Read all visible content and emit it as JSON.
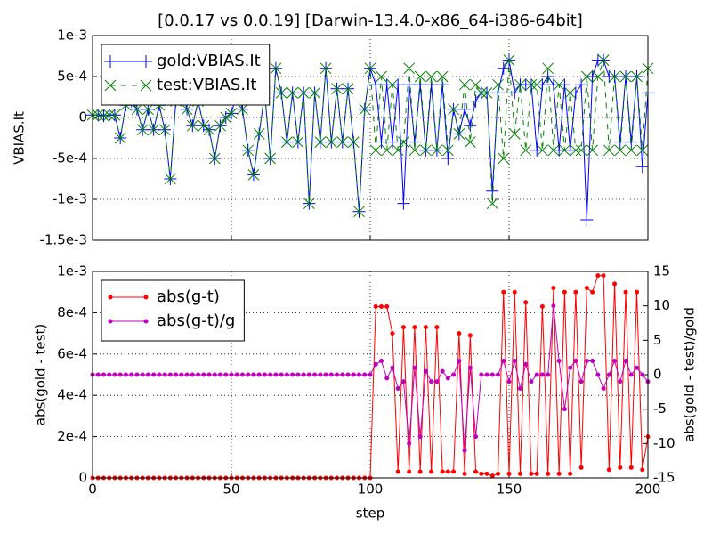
{
  "chart_data": [
    {
      "type": "line",
      "title": "[0.0.17 vs 0.0.19] [Darwin-13.4.0-x86_64-i386-64bit]",
      "ylabel": "VBIAS.It",
      "x": [
        0,
        2,
        4,
        6,
        8,
        10,
        12,
        14,
        16,
        18,
        20,
        22,
        24,
        26,
        28,
        30,
        32,
        34,
        36,
        38,
        40,
        42,
        44,
        46,
        48,
        50,
        52,
        54,
        56,
        58,
        60,
        62,
        64,
        66,
        68,
        70,
        72,
        74,
        76,
        78,
        80,
        82,
        84,
        86,
        88,
        90,
        92,
        94,
        96,
        98,
        100,
        102,
        104,
        106,
        108,
        110,
        112,
        114,
        116,
        118,
        120,
        122,
        124,
        126,
        128,
        130,
        132,
        134,
        136,
        138,
        140,
        142,
        144,
        146,
        148,
        150,
        152,
        154,
        156,
        158,
        160,
        162,
        164,
        166,
        168,
        170,
        172,
        174,
        176,
        178,
        180,
        182,
        184,
        186,
        188,
        190,
        192,
        194,
        196,
        198,
        200
      ],
      "series": [
        {
          "name": "gold:VBIAS.It",
          "color": "#0000ff",
          "marker": "+",
          "linestyle": "solid",
          "values": [
            3e-05,
            3e-05,
            2e-05,
            3e-05,
            3e-05,
            -0.00025,
            0.00015,
            0.0002,
            0.0001,
            -0.00015,
            0.0001,
            -0.00015,
            0.00015,
            -0.00015,
            -0.00075,
            0.0002,
            0.00035,
            0.0001,
            -0.0001,
            0.0002,
            -0.0001,
            -0.00015,
            -0.0005,
            -0.0001,
            0,
            5e-05,
            0.0003,
            0.0001,
            -0.0004,
            -0.0007,
            -0.0002,
            0.0003,
            -0.0005,
            0.0006,
            0.0003,
            -0.0003,
            0.0003,
            -0.0003,
            0.0003,
            -0.00105,
            0.0003,
            -0.0003,
            0.0006,
            -0.0003,
            0.00035,
            -0.0003,
            0.00035,
            -0.0003,
            -0.00115,
            0.0001,
            0.0006,
            0.0004,
            -0.0003,
            0.0004,
            -0.0003,
            0.0004,
            -0.00105,
            0.0004,
            -0.0003,
            0.0004,
            -0.0004,
            0.0004,
            -0.0004,
            0.0004,
            -0.0005,
            0.0001,
            -0.0002,
            0.0001,
            -0.0001,
            0.0002,
            0.0003,
            0.0003,
            -0.0009,
            0.0003,
            0.0006,
            0.0007,
            0.0003,
            0.0004,
            0.0004,
            0.0004,
            -0.0004,
            0.0004,
            0.0005,
            0.0004,
            -0.0004,
            0.0004,
            -0.0004,
            0.0003,
            0.0004,
            -0.00125,
            0.0005,
            0.0007,
            0.0007,
            0.0005,
            0.0005,
            -0.0003,
            0.0005,
            -0.0003,
            0.0005,
            -0.0006,
            0.0003
          ]
        },
        {
          "name": "test:VBIAS.It",
          "color": "#008000",
          "marker": "x",
          "linestyle": "dashed",
          "values": [
            3e-05,
            3e-05,
            2e-05,
            3e-05,
            3e-05,
            -0.00025,
            0.00015,
            0.0002,
            0.0001,
            -0.00015,
            0.0001,
            -0.00015,
            0.00015,
            -0.00015,
            -0.00075,
            0.0002,
            0.00035,
            0.0001,
            -0.0001,
            0.0002,
            -0.0001,
            -0.00015,
            -0.0005,
            -0.0001,
            0,
            5e-05,
            0.0003,
            0.0001,
            -0.0004,
            -0.0007,
            -0.0002,
            0.0003,
            -0.0005,
            0.0006,
            0.0003,
            -0.0003,
            0.0003,
            -0.0003,
            0.0003,
            -0.00105,
            0.0003,
            -0.0003,
            0.0006,
            -0.0003,
            0.00035,
            -0.0003,
            0.00035,
            -0.0003,
            -0.00115,
            0.0001,
            0.0006,
            -0.0004,
            0.0005,
            -0.0004,
            0.0004,
            -0.0004,
            -0.0003,
            0.0006,
            -0.0004,
            0.0005,
            -0.0004,
            0.0005,
            -0.0004,
            0.0005,
            -0.0004,
            0.0001,
            -0.0002,
            0.0004,
            -0.0003,
            0.0004,
            0.0003,
            0.0003,
            -0.00105,
            0.0004,
            -0.0005,
            0.0007,
            -0.0002,
            0.0004,
            -0.0004,
            0.0004,
            0.0004,
            -0.0004,
            0.0006,
            -0.0004,
            0.0004,
            -0.0004,
            0.0003,
            -0.0004,
            -0.0004,
            0.0005,
            -0.0004,
            0.0005,
            0.0007,
            -0.0004,
            0.0005,
            -0.0004,
            0.0005,
            -0.0004,
            0.0005,
            -0.0004,
            0.0006
          ]
        }
      ],
      "xlim": [
        0,
        200
      ],
      "xticks": [
        0,
        50,
        100,
        150,
        200
      ],
      "xtick_labels_shown": false,
      "ylim": [
        -0.0015,
        0.001
      ],
      "yticks": [
        {
          "value": -0.0015,
          "label": "-1.5e-3"
        },
        {
          "value": -0.001,
          "label": "-1e-3"
        },
        {
          "value": -0.0005,
          "label": "-5e-4"
        },
        0,
        {
          "value": 0.0005,
          "label": "5e-4"
        },
        {
          "value": 0.001,
          "label": "1e-3"
        }
      ],
      "grid": true,
      "legend": "upper-left"
    },
    {
      "type": "line",
      "xlabel": "step",
      "ylabel": "abs(gold - test)",
      "ylabel_color": "#ff0000",
      "y2label": "abs(gold - test)/gold",
      "y2label_color": "#bf00bf",
      "x": [
        0,
        2,
        4,
        6,
        8,
        10,
        12,
        14,
        16,
        18,
        20,
        22,
        24,
        26,
        28,
        30,
        32,
        34,
        36,
        38,
        40,
        42,
        44,
        46,
        48,
        50,
        52,
        54,
        56,
        58,
        60,
        62,
        64,
        66,
        68,
        70,
        72,
        74,
        76,
        78,
        80,
        82,
        84,
        86,
        88,
        90,
        92,
        94,
        96,
        98,
        100,
        102,
        104,
        106,
        108,
        110,
        112,
        114,
        116,
        118,
        120,
        122,
        124,
        126,
        128,
        130,
        132,
        134,
        136,
        138,
        140,
        142,
        144,
        146,
        148,
        150,
        152,
        154,
        156,
        158,
        160,
        162,
        164,
        166,
        168,
        170,
        172,
        174,
        176,
        178,
        180,
        182,
        184,
        186,
        188,
        190,
        192,
        194,
        196,
        198,
        200
      ],
      "series": [
        {
          "name": "abs(g-t)",
          "color": "#ff0000",
          "marker": "o",
          "linestyle": "solid",
          "values": [
            0,
            0,
            0,
            0,
            0,
            0,
            0,
            0,
            0,
            0,
            0,
            0,
            0,
            0,
            0,
            0,
            0,
            0,
            0,
            0,
            0,
            0,
            0,
            0,
            0,
            0,
            0,
            0,
            0,
            0,
            0,
            0,
            0,
            0,
            0,
            0,
            0,
            0,
            0,
            0,
            0,
            0,
            0,
            0,
            0,
            0,
            0,
            0,
            0,
            0,
            0,
            0.00083,
            0.00083,
            0.00083,
            0.0007,
            3e-05,
            0.00073,
            3e-05,
            0.00073,
            3e-05,
            0.00073,
            3e-05,
            0.00073,
            3e-05,
            3e-05,
            3e-05,
            0.0007,
            2e-05,
            0.00069,
            3e-05,
            2e-05,
            2e-05,
            1e-05,
            2e-05,
            0.0009,
            2e-05,
            0.0009,
            2e-05,
            0.00085,
            2e-05,
            2e-05,
            0.00083,
            2e-05,
            0.00092,
            2e-05,
            0.0009,
            2e-05,
            0.0009,
            5e-05,
            0.00092,
            0.0009,
            0.00098,
            0.00098,
            4e-05,
            0.00094,
            5e-05,
            0.0009,
            5e-05,
            0.0009,
            4e-05,
            0.0002
          ]
        },
        {
          "name": "abs(g-t)/g",
          "color": "#bf00bf",
          "marker": "o",
          "linestyle": "solid",
          "axis": "y2",
          "values": [
            0,
            0,
            0,
            0,
            0,
            0,
            0,
            0,
            0,
            0,
            0,
            0,
            0,
            0,
            0,
            0,
            0,
            0,
            0,
            0,
            0,
            0,
            0,
            0,
            0,
            0,
            0,
            0,
            0,
            0,
            0,
            0,
            0,
            0,
            0,
            0,
            0,
            0,
            0,
            0,
            0,
            0,
            0,
            0,
            0,
            0,
            0,
            0,
            0,
            0,
            0,
            1.5,
            2,
            -0.5,
            1,
            -2,
            -1,
            -10,
            1,
            -9,
            0.5,
            -1,
            -1,
            0.5,
            -0.5,
            0,
            2,
            -11,
            1,
            -9,
            0,
            0,
            0,
            0,
            2,
            -1,
            2,
            -2,
            1.5,
            -1,
            0,
            0,
            0,
            10,
            2,
            -5,
            1,
            2,
            -1,
            2,
            2,
            0,
            -2,
            0,
            2,
            -1,
            2,
            0,
            1,
            0,
            -1
          ]
        }
      ],
      "xlim": [
        0,
        200
      ],
      "xticks": [
        0,
        50,
        100,
        150,
        200
      ],
      "ylim": [
        0,
        0.001
      ],
      "yticks": [
        0,
        {
          "value": 0.0002,
          "label": "2e-4"
        },
        {
          "value": 0.0004,
          "label": "4e-4"
        },
        {
          "value": 0.0006,
          "label": "6e-4"
        },
        {
          "value": 0.0008,
          "label": "8e-4"
        },
        {
          "value": 0.001,
          "label": "1e-3"
        }
      ],
      "y2lim": [
        -15,
        15
      ],
      "y2ticks": [
        -15,
        -10,
        -5,
        0,
        5,
        10,
        15
      ],
      "grid": true,
      "legend": "upper-left"
    }
  ]
}
